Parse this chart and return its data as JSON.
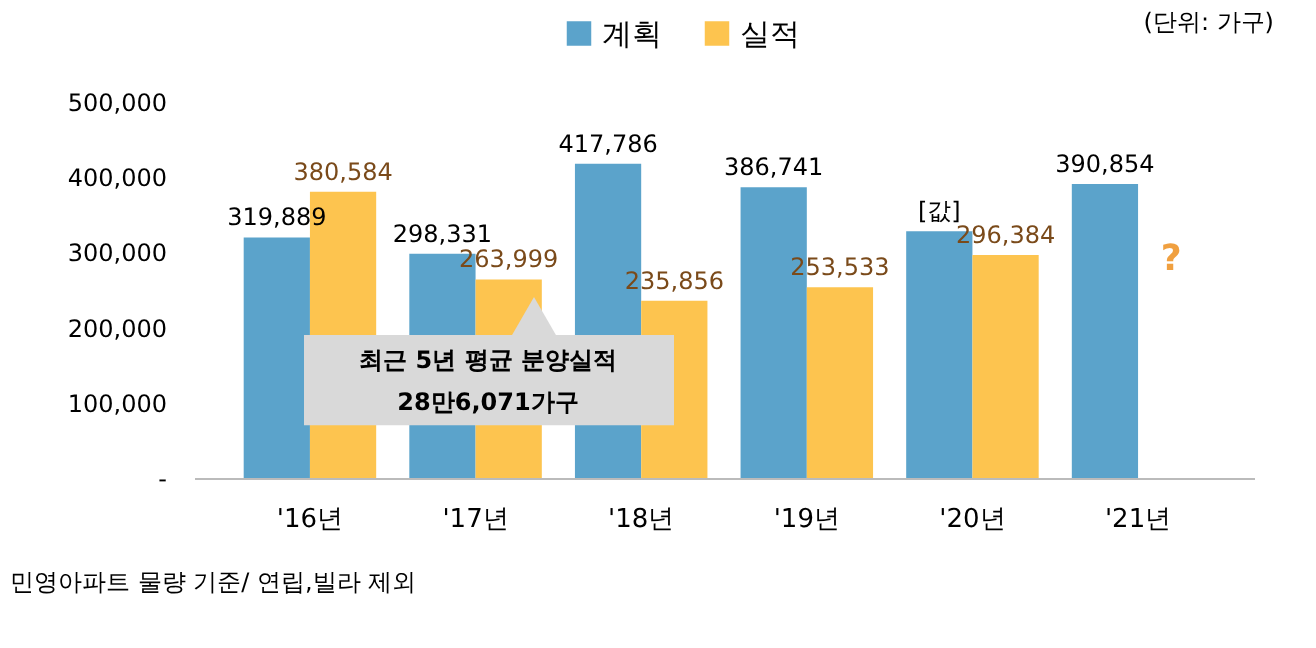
{
  "chart_data": {
    "type": "bar",
    "categories": [
      "'16년",
      "'17년",
      "'18년",
      "'19년",
      "'20년",
      "'21년"
    ],
    "series": [
      {
        "name": "계획",
        "color": "#5ba3cb",
        "values": [
          319889,
          298331,
          417786,
          386741,
          328000,
          390854
        ],
        "value_labels": [
          "319,889",
          "298,331",
          "417,786",
          "386,741",
          "[값]",
          "390,854"
        ]
      },
      {
        "name": "실적",
        "color": "#fdc44f",
        "values": [
          380584,
          263999,
          235856,
          253533,
          296384,
          null
        ],
        "value_labels": [
          "380,584",
          "263,999",
          "235,856",
          "253,533",
          "296,384",
          null
        ]
      }
    ],
    "ylim": [
      0,
      500000
    ],
    "yticks": [
      {
        "value": 0,
        "label": "-"
      },
      {
        "value": 100000,
        "label": "100,000"
      },
      {
        "value": 200000,
        "label": "200,000"
      },
      {
        "value": 300000,
        "label": "300,000"
      },
      {
        "value": 400000,
        "label": "400,000"
      },
      {
        "value": 500000,
        "label": "500,000"
      }
    ],
    "grid": false,
    "legend": "top",
    "annotations": [
      "(단위: 가구)",
      "최근 5년 평균 분양실적\n28만6,071가구",
      "?",
      "민영아파트 물량 기준/ 연립,빌라 제외"
    ]
  }
}
